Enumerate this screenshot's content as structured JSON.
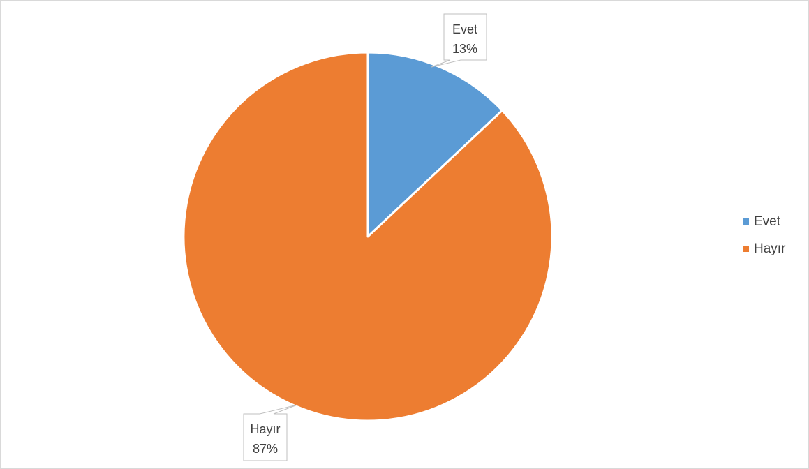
{
  "chart_data": {
    "type": "pie",
    "title": "",
    "categories": [
      "Evet",
      "Hayır"
    ],
    "values": [
      13,
      87
    ],
    "value_unit": "%",
    "colors": [
      "#5b9bd5",
      "#ed7d31"
    ],
    "data_labels": [
      {
        "category": "Evet",
        "value_text": "13%"
      },
      {
        "category": "Hayır",
        "value_text": "87%"
      }
    ],
    "legend": {
      "position": "right",
      "entries": [
        "Evet",
        "Hayır"
      ]
    }
  }
}
